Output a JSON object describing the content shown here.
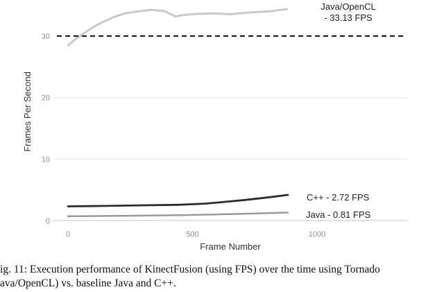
{
  "figure": {
    "caption": {
      "line1": "ig. 11: Execution performance of KinectFusion (using FPS) over the time using Tornado",
      "line2": "ava/OpenCL) vs. baseline Java and C++."
    }
  },
  "chart_data": {
    "type": "line",
    "title": "",
    "x_axis": {
      "label": "Frame Number",
      "ticks": [
        0,
        500,
        1000
      ],
      "range": [
        0,
        1000
      ]
    },
    "y_axis": {
      "label": "Frames Per Second",
      "ticks": [
        0,
        10,
        20,
        30
      ],
      "gridline_values": [
        0,
        10,
        20
      ],
      "range": [
        0,
        35
      ]
    },
    "threshold": {
      "value": 30,
      "style": "dashed"
    },
    "legend_position": "inline-annotations",
    "grid": true,
    "series": [
      {
        "id": "java-opencl",
        "name": "Java/OpenCL",
        "avg_fps": 33.13,
        "color": "#c9c9c9",
        "width": 3,
        "points": [
          [
            0,
            28.5
          ],
          [
            30,
            29.5
          ],
          [
            55,
            30.2
          ],
          [
            95,
            31.3
          ],
          [
            140,
            32.3
          ],
          [
            185,
            33.1
          ],
          [
            230,
            33.7
          ],
          [
            280,
            34.0
          ],
          [
            330,
            34.25
          ],
          [
            385,
            34.1
          ],
          [
            432,
            33.2
          ],
          [
            470,
            33.45
          ],
          [
            510,
            33.6
          ],
          [
            590,
            33.7
          ],
          [
            650,
            33.55
          ],
          [
            720,
            33.8
          ],
          [
            815,
            34.05
          ],
          [
            880,
            34.4
          ]
        ]
      },
      {
        "id": "cpp",
        "name": "C++",
        "avg_fps": 2.72,
        "color": "#2b2b2b",
        "width": 2.8,
        "points": [
          [
            0,
            2.31
          ],
          [
            150,
            2.38
          ],
          [
            300,
            2.48
          ],
          [
            440,
            2.56
          ],
          [
            550,
            2.75
          ],
          [
            620,
            3.0
          ],
          [
            700,
            3.3
          ],
          [
            790,
            3.7
          ],
          [
            883,
            4.17
          ]
        ]
      },
      {
        "id": "java",
        "name": "Java",
        "avg_fps": 0.81,
        "color": "#9a9a9a",
        "width": 2.5,
        "points": [
          [
            0,
            0.7
          ],
          [
            150,
            0.74
          ],
          [
            300,
            0.8
          ],
          [
            450,
            0.88
          ],
          [
            600,
            1.0
          ],
          [
            730,
            1.13
          ],
          [
            883,
            1.3
          ]
        ]
      }
    ],
    "annotations": [
      {
        "id": "java-opencl",
        "lines": [
          "Java/OpenCL",
          "- 33.13 FPS"
        ]
      },
      {
        "id": "cpp",
        "lines": [
          "C++ - 2.72 FPS"
        ]
      },
      {
        "id": "java",
        "lines": [
          "Java - 0.81 FPS"
        ]
      }
    ],
    "colors": {
      "gridline": "#ededed",
      "axis_line": "#e2e2e2",
      "threshold": "#161616",
      "tick_label": "#8f8f8f",
      "axis_title": "#333333",
      "annotation": "#1f1f1f"
    }
  }
}
